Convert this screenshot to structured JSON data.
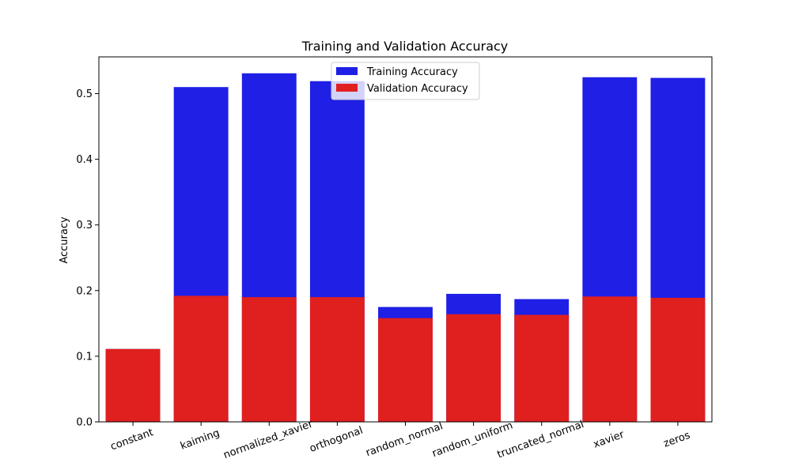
{
  "chart_data": {
    "type": "bar",
    "title": "Training and Validation Accuracy",
    "xlabel": "",
    "ylabel": "Accuracy",
    "ylim": [
      0,
      0.556
    ],
    "yticks": [
      "0.0",
      "0.1",
      "0.2",
      "0.3",
      "0.4",
      "0.5"
    ],
    "categories": [
      "constant",
      "kaiming",
      "normalized_xavier",
      "orthogonal",
      "random_normal",
      "random_uniform",
      "truncated_normal",
      "xavier",
      "zeros"
    ],
    "series": [
      {
        "name": "Training Accuracy",
        "color": "#1f1fe6",
        "values": [
          0.111,
          0.51,
          0.531,
          0.519,
          0.175,
          0.195,
          0.187,
          0.525,
          0.524
        ]
      },
      {
        "name": "Validation Accuracy",
        "color": "#e01f1f",
        "values": [
          0.111,
          0.192,
          0.19,
          0.19,
          0.158,
          0.164,
          0.163,
          0.191,
          0.189
        ]
      }
    ],
    "grid": false,
    "legend_position": "top-center",
    "bar_mode": "overlay"
  }
}
